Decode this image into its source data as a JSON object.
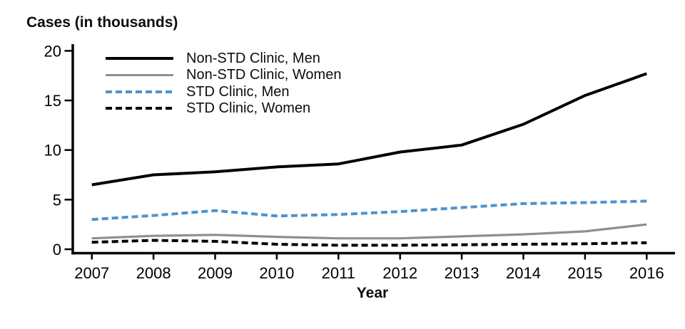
{
  "chart_data": {
    "type": "line",
    "title": "Cases (in thousands)",
    "xlabel": "Year",
    "ylabel": "Cases (in thousands)",
    "x": [
      2007,
      2008,
      2009,
      2010,
      2011,
      2012,
      2013,
      2014,
      2015,
      2016
    ],
    "y_ticks": [
      0,
      5,
      10,
      15,
      20
    ],
    "ylim": [
      0,
      20
    ],
    "grid": false,
    "legend_position": "top-left-inside",
    "axis_color": "#000000",
    "series": [
      {
        "name": "Non-STD Clinic, Men",
        "color": "#000000",
        "style": "solid",
        "width": 4,
        "values": [
          6.5,
          7.5,
          7.8,
          8.3,
          8.6,
          9.8,
          10.5,
          12.6,
          15.5,
          17.7
        ]
      },
      {
        "name": "Non-STD Clinic, Women",
        "color": "#8e8e8e",
        "style": "solid",
        "width": 3.2,
        "values": [
          1.1,
          1.35,
          1.45,
          1.25,
          1.1,
          1.1,
          1.3,
          1.5,
          1.8,
          2.5
        ]
      },
      {
        "name": "STD Clinic, Men",
        "color": "#4e93cd",
        "style": "dashed",
        "width": 4,
        "values": [
          3.0,
          3.4,
          3.9,
          3.35,
          3.5,
          3.8,
          4.2,
          4.6,
          4.7,
          4.85
        ]
      },
      {
        "name": "STD Clinic, Women",
        "color": "#000000",
        "style": "dashed",
        "width": 4,
        "values": [
          0.7,
          0.9,
          0.8,
          0.5,
          0.4,
          0.4,
          0.45,
          0.5,
          0.55,
          0.65
        ]
      }
    ]
  }
}
